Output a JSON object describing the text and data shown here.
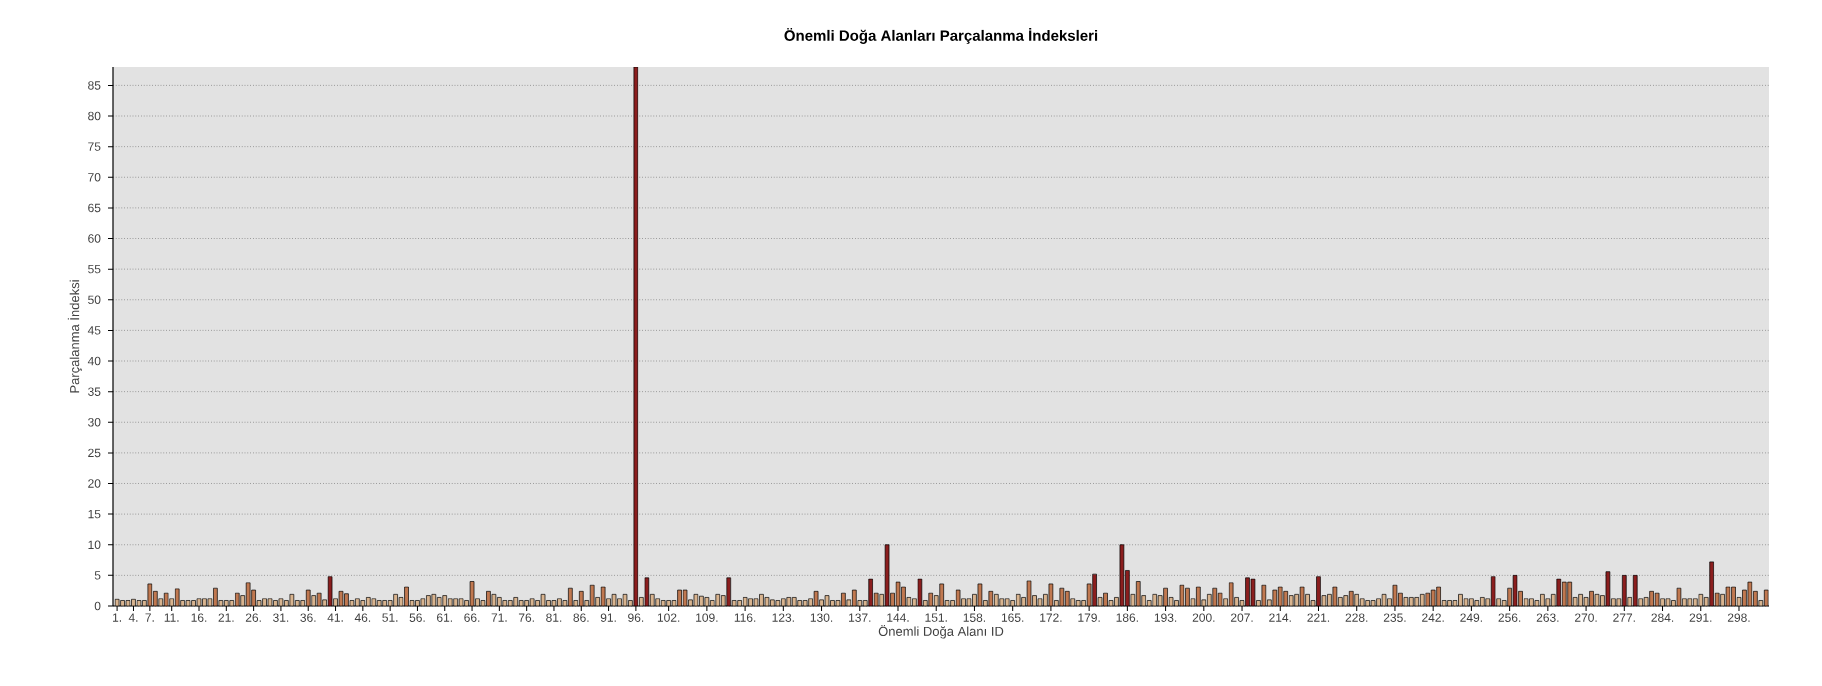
{
  "chart_data": {
    "type": "bar",
    "title": "Önemli Doğa Alanları Parçalanma İndeksleri",
    "xlabel": "Önemli Doğa Alanı ID",
    "ylabel": "Parçalanma İndeksi",
    "categories": [
      "1.",
      null,
      null,
      "4.",
      null,
      null,
      "7.",
      null,
      null,
      null,
      "11.",
      null,
      null,
      null,
      null,
      "16.",
      null,
      null,
      null,
      null,
      "21.",
      null,
      null,
      null,
      null,
      "26.",
      null,
      null,
      null,
      null,
      "31.",
      null,
      null,
      null,
      null,
      "36.",
      null,
      null,
      null,
      null,
      "41.",
      null,
      null,
      null,
      null,
      "46.",
      null,
      null,
      null,
      null,
      "51.",
      null,
      null,
      null,
      null,
      "56.",
      null,
      null,
      null,
      null,
      "61.",
      null,
      null,
      null,
      null,
      "66.",
      null,
      null,
      null,
      null,
      "71.",
      null,
      null,
      null,
      null,
      "76.",
      null,
      null,
      null,
      null,
      "81.",
      null,
      null,
      null,
      null,
      "86.",
      null,
      null,
      null,
      null,
      "91.",
      null,
      null,
      null,
      null,
      "96.",
      null,
      null,
      null,
      null,
      null,
      "102.",
      null,
      null,
      null,
      null,
      null,
      null,
      "109.",
      null,
      null,
      null,
      null,
      null,
      null,
      "116.",
      null,
      null,
      null,
      null,
      null,
      null,
      "123.",
      null,
      null,
      null,
      null,
      null,
      null,
      "130.",
      null,
      null,
      null,
      null,
      null,
      null,
      "137.",
      null,
      null,
      null,
      null,
      null,
      null,
      "144.",
      null,
      null,
      null,
      null,
      null,
      null,
      "151.",
      null,
      null,
      null,
      null,
      null,
      null,
      "158.",
      null,
      null,
      null,
      null,
      null,
      null,
      "165.",
      null,
      null,
      null,
      null,
      null,
      null,
      "172.",
      null,
      null,
      null,
      null,
      null,
      null,
      "179.",
      null,
      null,
      null,
      null,
      null,
      null,
      "186.",
      null,
      null,
      null,
      null,
      null,
      null,
      "193.",
      null,
      null,
      null,
      null,
      null,
      null,
      "200.",
      null,
      null,
      null,
      null,
      null,
      null,
      "207.",
      null,
      null,
      null,
      null,
      null,
      null,
      "214.",
      null,
      null,
      null,
      null,
      null,
      null,
      "221.",
      null,
      null,
      null,
      null,
      null,
      null,
      "228.",
      null,
      null,
      null,
      null,
      null,
      null,
      "235.",
      null,
      null,
      null,
      null,
      null,
      null,
      "242.",
      null,
      null,
      null,
      null,
      null,
      null,
      "249.",
      null,
      null,
      null,
      null,
      null,
      null,
      "256.",
      null,
      null,
      null,
      null,
      null,
      null,
      "263.",
      null,
      null,
      null,
      null,
      null,
      null,
      "270.",
      null,
      null,
      null,
      null,
      null,
      null,
      "277.",
      null,
      null,
      null,
      null,
      null,
      null,
      "284.",
      null,
      null,
      null,
      null,
      null,
      null,
      "291.",
      null,
      null,
      null,
      null,
      null,
      null,
      "298.",
      null,
      null,
      null,
      null,
      null
    ],
    "values": [
      1.1,
      0.9,
      0.9,
      1.1,
      0.9,
      0.9,
      3.6,
      2.4,
      1.2,
      2.1,
      1.2,
      2.8,
      0.9,
      0.9,
      0.9,
      1.2,
      1.2,
      1.2,
      2.9,
      0.9,
      0.9,
      0.9,
      2.1,
      1.7,
      3.8,
      2.6,
      0.9,
      1.2,
      1.2,
      0.9,
      1.2,
      0.9,
      1.9,
      0.9,
      0.9,
      2.6,
      1.7,
      2.1,
      1.0,
      4.8,
      1.2,
      2.4,
      2.0,
      0.9,
      1.2,
      0.9,
      1.4,
      1.2,
      0.9,
      0.9,
      0.9,
      1.9,
      1.4,
      3.1,
      0.9,
      0.9,
      1.2,
      1.7,
      1.9,
      1.4,
      1.7,
      1.2,
      1.2,
      1.2,
      0.9,
      4.0,
      1.2,
      0.9,
      2.4,
      1.9,
      1.4,
      0.9,
      0.9,
      1.4,
      0.9,
      0.9,
      1.2,
      0.9,
      1.9,
      0.9,
      0.9,
      1.2,
      0.9,
      2.9,
      0.9,
      2.4,
      0.9,
      3.4,
      1.4,
      3.1,
      1.2,
      1.9,
      1.2,
      1.9,
      0.9,
      88,
      1.4,
      4.6,
      1.9,
      1.2,
      0.9,
      0.9,
      0.9,
      2.6,
      2.6,
      1.0,
      1.9,
      1.6,
      1.4,
      0.9,
      1.9,
      1.7,
      4.6,
      0.9,
      0.9,
      1.4,
      1.2,
      1.2,
      1.9,
      1.4,
      1.0,
      0.9,
      1.2,
      1.4,
      1.4,
      0.9,
      0.9,
      1.2,
      2.4,
      1.0,
      1.7,
      0.9,
      0.9,
      2.1,
      1.0,
      2.6,
      0.9,
      0.9,
      4.4,
      2.1,
      1.9,
      10,
      2.1,
      3.9,
      3.1,
      1.4,
      1.2,
      4.4,
      0.9,
      2.1,
      1.7,
      3.6,
      0.9,
      0.9,
      2.6,
      1.2,
      1.2,
      1.9,
      3.6,
      0.9,
      2.4,
      1.9,
      1.2,
      1.2,
      0.9,
      1.9,
      1.4,
      4.1,
      1.7,
      1.2,
      1.9,
      3.6,
      0.9,
      2.9,
      2.4,
      1.2,
      0.9,
      0.9,
      3.6,
      5.2,
      1.4,
      2.1,
      0.9,
      1.4,
      10,
      5.8,
      1.9,
      4.0,
      1.7,
      0.9,
      1.9,
      1.7,
      2.9,
      1.4,
      0.9,
      3.4,
      2.9,
      1.2,
      3.1,
      1.0,
      1.9,
      2.9,
      2.1,
      1.2,
      3.8,
      1.4,
      0.9,
      4.6,
      4.4,
      0.9,
      3.4,
      1.0,
      2.6,
      3.1,
      2.4,
      1.7,
      1.9,
      3.1,
      1.9,
      0.9,
      4.8,
      1.7,
      1.9,
      3.1,
      1.4,
      1.7,
      2.4,
      1.9,
      1.2,
      0.9,
      0.9,
      1.2,
      1.9,
      1.2,
      3.4,
      2.1,
      1.4,
      1.4,
      1.4,
      1.9,
      2.1,
      2.6,
      3.1,
      0.9,
      0.9,
      0.9,
      1.9,
      1.2,
      1.2,
      0.9,
      1.4,
      1.2,
      4.8,
      1.2,
      0.9,
      2.9,
      5.0,
      2.4,
      1.2,
      1.2,
      0.9,
      1.9,
      1.2,
      1.9,
      4.4,
      3.9,
      3.9,
      1.4,
      1.9,
      1.4,
      2.4,
      1.9,
      1.7,
      5.6,
      1.2,
      1.2,
      5.0,
      1.4,
      5.0,
      1.2,
      1.4,
      2.4,
      2.1,
      1.2,
      1.2,
      0.9,
      2.9,
      1.2,
      1.2,
      1.2,
      1.9,
      1.4,
      7.2,
      2.1,
      1.9,
      3.1,
      3.1,
      1.4,
      2.6,
      3.9,
      2.4,
      0.9,
      2.6
    ],
    "colors": [
      "#d9b48f",
      "#d9b48f",
      "#d9b48f",
      "#d9b48f",
      "#d9b48f",
      "#d9b48f",
      "#c07850",
      "#c07850",
      "#d9b48f",
      "#c07850",
      "#d9b48f",
      "#c07850",
      "#d9b48f",
      "#d9b48f",
      "#d9b48f",
      "#d9b48f",
      "#d9b48f",
      "#d9b48f",
      "#c07850",
      "#d9b48f",
      "#d9b48f",
      "#d9b48f",
      "#c07850",
      "#d9b48f",
      "#c07850",
      "#c07850",
      "#d9b48f",
      "#d9b48f",
      "#d9b48f",
      "#d9b48f",
      "#d9b48f",
      "#d9b48f",
      "#d9b48f",
      "#d9b48f",
      "#d9b48f",
      "#c07850",
      "#d9b48f",
      "#c07850",
      "#d9b48f",
      "#8b1e1e",
      "#d9b48f",
      "#c07850",
      "#c07850",
      "#d9b48f",
      "#d9b48f",
      "#d9b48f",
      "#d9b48f",
      "#d9b48f",
      "#d9b48f",
      "#d9b48f",
      "#d9b48f",
      "#d9b48f",
      "#d9b48f",
      "#c07850",
      "#d9b48f",
      "#d9b48f",
      "#d9b48f",
      "#d9b48f",
      "#d9b48f",
      "#d9b48f",
      "#d9b48f",
      "#d9b48f",
      "#d9b48f",
      "#d9b48f",
      "#d9b48f",
      "#c07850",
      "#d9b48f",
      "#d9b48f",
      "#c07850",
      "#d9b48f",
      "#d9b48f",
      "#d9b48f",
      "#d9b48f",
      "#d9b48f",
      "#d9b48f",
      "#d9b48f",
      "#d9b48f",
      "#d9b48f",
      "#d9b48f",
      "#d9b48f",
      "#d9b48f",
      "#d9b48f",
      "#d9b48f",
      "#c07850",
      "#d9b48f",
      "#c07850",
      "#d9b48f",
      "#c07850",
      "#d9b48f",
      "#c07850",
      "#d9b48f",
      "#d9b48f",
      "#d9b48f",
      "#d9b48f",
      "#d9b48f",
      "#8b1e1e",
      "#d9b48f",
      "#8b1e1e",
      "#d9b48f",
      "#d9b48f",
      "#d9b48f",
      "#d9b48f",
      "#d9b48f",
      "#c07850",
      "#c07850",
      "#d9b48f",
      "#d9b48f",
      "#d9b48f",
      "#d9b48f",
      "#d9b48f",
      "#d9b48f",
      "#d9b48f",
      "#8b1e1e",
      "#d9b48f",
      "#d9b48f",
      "#d9b48f",
      "#d9b48f",
      "#d9b48f",
      "#d9b48f",
      "#d9b48f",
      "#d9b48f",
      "#d9b48f",
      "#d9b48f",
      "#d9b48f",
      "#d9b48f",
      "#d9b48f",
      "#d9b48f",
      "#d9b48f",
      "#c07850",
      "#d9b48f",
      "#d9b48f",
      "#d9b48f",
      "#d9b48f",
      "#c07850",
      "#d9b48f",
      "#c07850",
      "#d9b48f",
      "#d9b48f",
      "#8b1e1e",
      "#c07850",
      "#d9b48f",
      "#8b1e1e",
      "#c07850",
      "#c07850",
      "#c07850",
      "#d9b48f",
      "#d9b48f",
      "#8b1e1e",
      "#d9b48f",
      "#c07850",
      "#d9b48f",
      "#c07850",
      "#d9b48f",
      "#d9b48f",
      "#c07850",
      "#d9b48f",
      "#d9b48f",
      "#d9b48f",
      "#c07850",
      "#d9b48f",
      "#c07850",
      "#d9b48f",
      "#d9b48f",
      "#d9b48f",
      "#d9b48f",
      "#d9b48f",
      "#d9b48f",
      "#c07850",
      "#d9b48f",
      "#d9b48f",
      "#d9b48f",
      "#c07850",
      "#d9b48f",
      "#c07850",
      "#c07850",
      "#d9b48f",
      "#d9b48f",
      "#d9b48f",
      "#c07850",
      "#8b1e1e",
      "#d9b48f",
      "#c07850",
      "#d9b48f",
      "#d9b48f",
      "#8b1e1e",
      "#8b1e1e",
      "#d9b48f",
      "#c07850",
      "#d9b48f",
      "#d9b48f",
      "#d9b48f",
      "#d9b48f",
      "#c07850",
      "#d9b48f",
      "#d9b48f",
      "#c07850",
      "#c07850",
      "#d9b48f",
      "#c07850",
      "#d9b48f",
      "#d9b48f",
      "#c07850",
      "#c07850",
      "#d9b48f",
      "#c07850",
      "#d9b48f",
      "#d9b48f",
      "#8b1e1e",
      "#8b1e1e",
      "#d9b48f",
      "#c07850",
      "#d9b48f",
      "#c07850",
      "#c07850",
      "#c07850",
      "#d9b48f",
      "#d9b48f",
      "#c07850",
      "#d9b48f",
      "#d9b48f",
      "#8b1e1e",
      "#d9b48f",
      "#d9b48f",
      "#c07850",
      "#d9b48f",
      "#d9b48f",
      "#c07850",
      "#d9b48f",
      "#d9b48f",
      "#d9b48f",
      "#d9b48f",
      "#d9b48f",
      "#d9b48f",
      "#d9b48f",
      "#c07850",
      "#c07850",
      "#d9b48f",
      "#d9b48f",
      "#d9b48f",
      "#d9b48f",
      "#c07850",
      "#c07850",
      "#c07850",
      "#d9b48f",
      "#d9b48f",
      "#d9b48f",
      "#d9b48f",
      "#d9b48f",
      "#d9b48f",
      "#d9b48f",
      "#d9b48f",
      "#d9b48f",
      "#8b1e1e",
      "#d9b48f",
      "#d9b48f",
      "#c07850",
      "#8b1e1e",
      "#c07850",
      "#d9b48f",
      "#d9b48f",
      "#d9b48f",
      "#d9b48f",
      "#d9b48f",
      "#d9b48f",
      "#8b1e1e",
      "#c07850",
      "#c07850",
      "#d9b48f",
      "#d9b48f",
      "#d9b48f",
      "#c07850",
      "#d9b48f",
      "#d9b48f",
      "#8b1e1e",
      "#d9b48f",
      "#d9b48f",
      "#8b1e1e",
      "#d9b48f",
      "#8b1e1e",
      "#d9b48f",
      "#d9b48f",
      "#c07850",
      "#c07850",
      "#d9b48f",
      "#d9b48f",
      "#d9b48f",
      "#c07850",
      "#d9b48f",
      "#d9b48f",
      "#d9b48f",
      "#d9b48f",
      "#d9b48f",
      "#8b1e1e",
      "#c07850",
      "#d9b48f",
      "#c07850",
      "#c07850",
      "#d9b48f",
      "#c07850",
      "#c07850",
      "#c07850",
      "#d9b48f",
      "#c07850"
    ],
    "ylim": [
      0,
      88
    ],
    "yticks": [
      0,
      5,
      10,
      15,
      20,
      25,
      30,
      35,
      40,
      45,
      50,
      55,
      60,
      65,
      70,
      75,
      80,
      85
    ],
    "grid": "y"
  }
}
